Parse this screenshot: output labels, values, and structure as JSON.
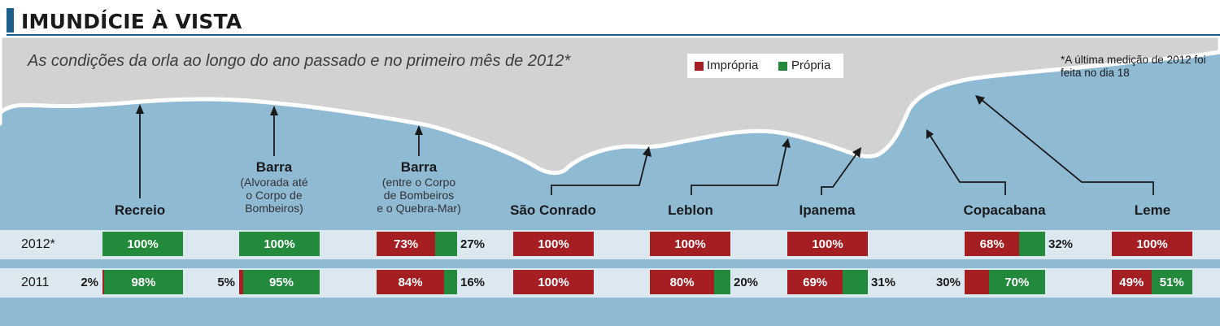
{
  "title": "IMUNDÍCIE À VISTA",
  "subtitle": "As condições da orla ao longo do ano passado e no primeiro mês de 2012*",
  "footnote": "*A última medição de 2012 foi feita no dia 18",
  "colors": {
    "impropria": "#a41e22",
    "propria": "#238a3c",
    "accent": "#1d5f8c",
    "sea": "#8fbad3",
    "land": "#d2d2d2"
  },
  "chart_data": {
    "type": "bar",
    "stacked": true,
    "orientation": "horizontal",
    "legend": [
      {
        "key": "impropria",
        "label": "Imprópria"
      },
      {
        "key": "propria",
        "label": "Própria"
      }
    ],
    "rows": [
      {
        "label": "2012*",
        "year": "2012"
      },
      {
        "label": "2011",
        "year": "2011"
      }
    ],
    "beaches": [
      {
        "name": "Recreio",
        "title": "Recreio",
        "desc": "",
        "y2012": {
          "impropria": 0,
          "propria": 100
        },
        "y2011": {
          "impropria": 2,
          "propria": 98
        }
      },
      {
        "name": "Barra (Alvorada até o Corpo de Bombeiros)",
        "title": "Barra",
        "desc": "(Alvorada até o Corpo de Bombeiros)",
        "desc_lines": [
          "(Alvorada até",
          "o Corpo de",
          "Bombeiros)"
        ],
        "y2012": {
          "impropria": 0,
          "propria": 100
        },
        "y2011": {
          "impropria": 5,
          "propria": 95
        }
      },
      {
        "name": "Barra (entre o Corpo de Bombeiros e o Quebra-Mar)",
        "title": "Barra",
        "desc": "(entre o Corpo de Bombeiros e o Quebra-Mar)",
        "desc_lines": [
          "(entre o Corpo",
          "de Bombeiros",
          "e o Quebra-Mar)"
        ],
        "y2012": {
          "impropria": 73,
          "propria": 27
        },
        "y2011": {
          "impropria": 84,
          "propria": 16
        }
      },
      {
        "name": "São Conrado",
        "title": "São Conrado",
        "desc": "",
        "y2012": {
          "impropria": 100,
          "propria": 0
        },
        "y2011": {
          "impropria": 100,
          "propria": 0
        }
      },
      {
        "name": "Leblon",
        "title": "Leblon",
        "desc": "",
        "y2012": {
          "impropria": 100,
          "propria": 0
        },
        "y2011": {
          "impropria": 80,
          "propria": 20
        }
      },
      {
        "name": "Ipanema",
        "title": "Ipanema",
        "desc": "",
        "y2012": {
          "impropria": 100,
          "propria": 0
        },
        "y2011": {
          "impropria": 69,
          "propria": 31
        }
      },
      {
        "name": "Copacabana",
        "title": "Copacabana",
        "desc": "",
        "y2012": {
          "impropria": 68,
          "propria": 32
        },
        "y2011": {
          "impropria": 30,
          "propria": 70
        }
      },
      {
        "name": "Leme",
        "title": "Leme",
        "desc": "",
        "y2012": {
          "impropria": 100,
          "propria": 0
        },
        "y2011": {
          "impropria": 49,
          "propria": 51
        }
      }
    ],
    "unit": "%"
  }
}
